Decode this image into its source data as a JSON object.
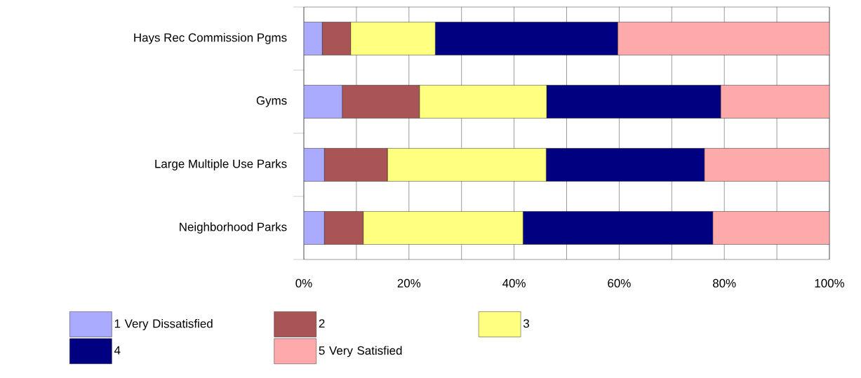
{
  "chart_data": {
    "type": "bar",
    "orientation": "horizontal",
    "stacked": true,
    "categories": [
      "Hays Rec Commission Pgms",
      "Gyms",
      "Large Multiple Use Parks",
      "Neighborhood Parks"
    ],
    "series": [
      {
        "name": "1 Very Dissatisfied",
        "color": "#aaaaff",
        "values": [
          3.5,
          7.3,
          3.9,
          3.9
        ]
      },
      {
        "name": "2",
        "color": "#aa5555",
        "values": [
          5.4,
          14.7,
          12.0,
          7.4
        ]
      },
      {
        "name": "3",
        "color": "#ffff80",
        "values": [
          16.1,
          24.2,
          30.2,
          30.4
        ]
      },
      {
        "name": "4",
        "color": "#000080",
        "values": [
          34.7,
          33.1,
          30.1,
          36.1
        ]
      },
      {
        "name": "5 Very Satisfied",
        "color": "#ffaaaa",
        "values": [
          40.3,
          20.7,
          23.8,
          22.2
        ]
      }
    ],
    "xlim": [
      0,
      100
    ],
    "xticks": [
      {
        "value": 0,
        "label": "0%"
      },
      {
        "value": 10,
        "label": null
      },
      {
        "value": 20,
        "label": "20%"
      },
      {
        "value": 30,
        "label": null
      },
      {
        "value": 40,
        "label": "40%"
      },
      {
        "value": 50,
        "label": null
      },
      {
        "value": 60,
        "label": "60%"
      },
      {
        "value": 70,
        "label": null
      },
      {
        "value": 80,
        "label": "80%"
      },
      {
        "value": 90,
        "label": null
      },
      {
        "value": 100,
        "label": "100%"
      }
    ],
    "grid": "x",
    "legend": "bottom"
  }
}
